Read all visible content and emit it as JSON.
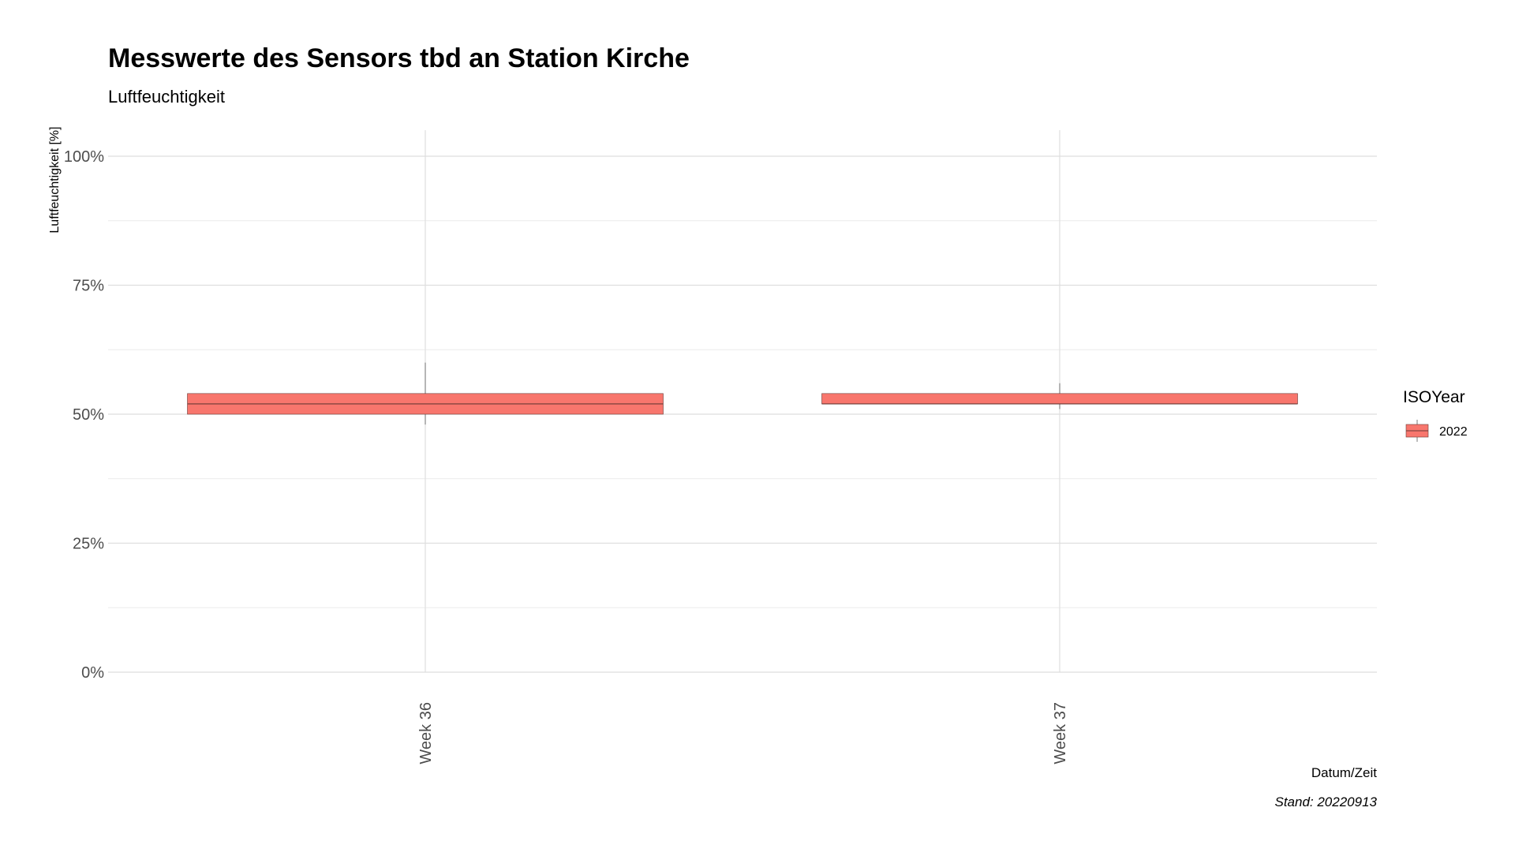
{
  "chart_data": {
    "type": "boxplot",
    "title": "Messwerte des Sensors tbd an Station Kirche",
    "subtitle": "Luftfeuchtigkeit",
    "xlabel": "Datum/Zeit",
    "ylabel": "Luftfeuchtigkeit [%]",
    "caption": "Stand: 20220913",
    "categories": [
      "Week 36",
      "Week 37"
    ],
    "ylim": [
      0,
      100
    ],
    "y_ticks": [
      0,
      25,
      50,
      75,
      100
    ],
    "y_tick_labels": [
      "0%",
      "25%",
      "50%",
      "75%",
      "100%"
    ],
    "y_minor_ticks": [
      12.5,
      37.5,
      62.5,
      87.5
    ],
    "grid": true,
    "legend": {
      "title": "ISOYear",
      "position": "right",
      "entries": [
        {
          "label": "2022",
          "color": "#F8766D"
        }
      ]
    },
    "series": [
      {
        "name": "2022",
        "color": "#F8766D",
        "boxes": [
          {
            "category": "Week 36",
            "whisker_low": 48,
            "q1": 50,
            "median": 52,
            "q3": 54,
            "whisker_high": 60
          },
          {
            "category": "Week 37",
            "whisker_low": 51,
            "q1": 52,
            "median": 52,
            "q3": 54,
            "whisker_high": 56
          }
        ]
      }
    ]
  }
}
